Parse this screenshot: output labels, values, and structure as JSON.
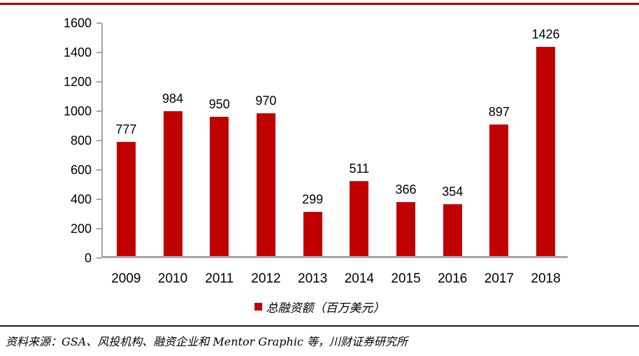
{
  "page": {
    "top_rule_color": "#A00000",
    "divider_color": "#1A1A1A"
  },
  "chart_data": {
    "type": "bar",
    "categories": [
      "2009",
      "2010",
      "2011",
      "2012",
      "2013",
      "2014",
      "2015",
      "2016",
      "2017",
      "2018"
    ],
    "values": [
      777,
      984,
      950,
      970,
      299,
      511,
      366,
      354,
      897,
      1426
    ],
    "series_name": "总融资额（百万美元）",
    "legend_marker": "red-square",
    "legend_position": "bottom",
    "ylim": [
      0,
      1600
    ],
    "yticks": [
      0,
      200,
      400,
      600,
      800,
      1000,
      1200,
      1400,
      1600
    ],
    "grid": false,
    "bar_color": "#C00000",
    "axis_color": "#A6A6A6",
    "label_color": "#000000"
  },
  "source": {
    "text": "资料来源：GSA、风投机构、融资企业和 Mentor Graphic 等，川财证券研究所"
  }
}
